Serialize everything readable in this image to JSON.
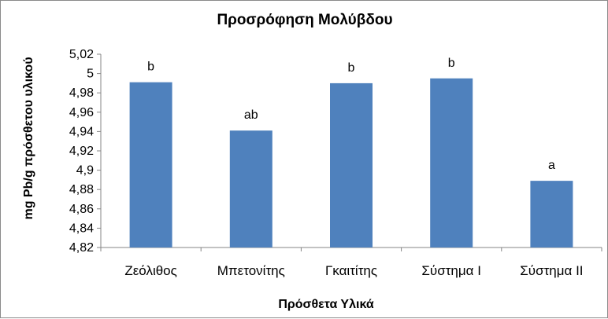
{
  "chart_data": {
    "type": "bar",
    "title": "Προσρόφηση Μολύβδου",
    "xlabel": "Πρόσθετα Υλικά",
    "ylabel": "mg Pb/g πρόσθετου υλικού",
    "categories": [
      "Ζεόλιθος",
      "Μπετονίτης",
      "Γκαιτίτης",
      "Σύστημα Ι",
      "Σύστημα ΙΙ"
    ],
    "values": [
      4.991,
      4.941,
      4.99,
      4.995,
      4.889
    ],
    "data_labels": [
      "b",
      "ab",
      "b",
      "b",
      "a"
    ],
    "ylim": [
      4.82,
      5.02
    ],
    "yticks": [
      "4,82",
      "4,84",
      "4,86",
      "4,88",
      "4,9",
      "4,92",
      "4,94",
      "4,96",
      "4,98",
      "5",
      "5,02"
    ],
    "bar_color": "#4f81bd",
    "grid": false,
    "legend": "none"
  }
}
